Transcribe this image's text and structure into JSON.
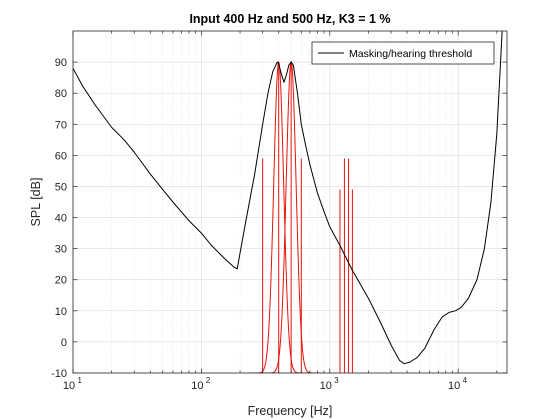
{
  "chart_data": {
    "type": "line",
    "title": "Input 400 Hz and 500 Hz, K3 = 1 %",
    "xlabel": "Frequency [Hz]",
    "ylabel": "SPL [dB]",
    "xscale": "log",
    "xlim": [
      10,
      24000
    ],
    "ylim": [
      -10,
      100
    ],
    "yticks": [
      -10,
      0,
      10,
      20,
      30,
      40,
      50,
      60,
      70,
      80,
      90
    ],
    "xtick_labels": [
      {
        "base": "10",
        "exp": "1"
      },
      {
        "base": "10",
        "exp": "2"
      },
      {
        "base": "10",
        "exp": "3"
      },
      {
        "base": "10",
        "exp": "4"
      }
    ],
    "grid": true,
    "legend": {
      "location": "top-right",
      "entries": [
        "Masking/hearing threshold"
      ]
    },
    "colors": {
      "threshold": "#000000",
      "signal": "#e8120c",
      "grid": "#d9d9d9"
    },
    "series": [
      {
        "name": "Masking/hearing threshold",
        "x": [
          10,
          12,
          15,
          20,
          25,
          30,
          40,
          50,
          60,
          80,
          100,
          120,
          150,
          180,
          190,
          220,
          260,
          300,
          330,
          360,
          390,
          400,
          420,
          440,
          460,
          480,
          500,
          520,
          560,
          600,
          650,
          700,
          800,
          900,
          1000,
          1200,
          1500,
          2000,
          2500,
          3000,
          3500,
          3800,
          4200,
          4800,
          5500,
          6500,
          7500,
          8500,
          9500,
          10500,
          12000,
          14000,
          16000,
          18000,
          20000,
          22000
        ],
        "y": [
          88,
          82,
          76,
          69,
          65,
          61,
          54,
          49,
          45,
          39,
          35,
          31,
          27,
          24,
          23.5,
          38,
          54,
          70,
          80,
          87,
          90,
          89.5,
          86,
          83.5,
          86,
          89,
          90,
          89,
          80,
          70,
          63,
          57,
          48,
          42,
          37,
          31,
          23,
          14,
          6,
          -1,
          -6,
          -7,
          -6.5,
          -5,
          -2,
          4,
          8,
          9.5,
          10,
          11,
          14,
          20,
          30,
          45,
          67,
          100
        ]
      }
    ],
    "lines": {
      "x": [
        300,
        400,
        500,
        600,
        1200,
        1300,
        1400,
        1500
      ],
      "y": [
        59,
        90,
        90,
        59,
        49,
        59,
        59,
        49
      ]
    },
    "signal_bumps": [
      {
        "center": 400,
        "peak": 90
      },
      {
        "center": 500,
        "peak": 90
      }
    ]
  }
}
